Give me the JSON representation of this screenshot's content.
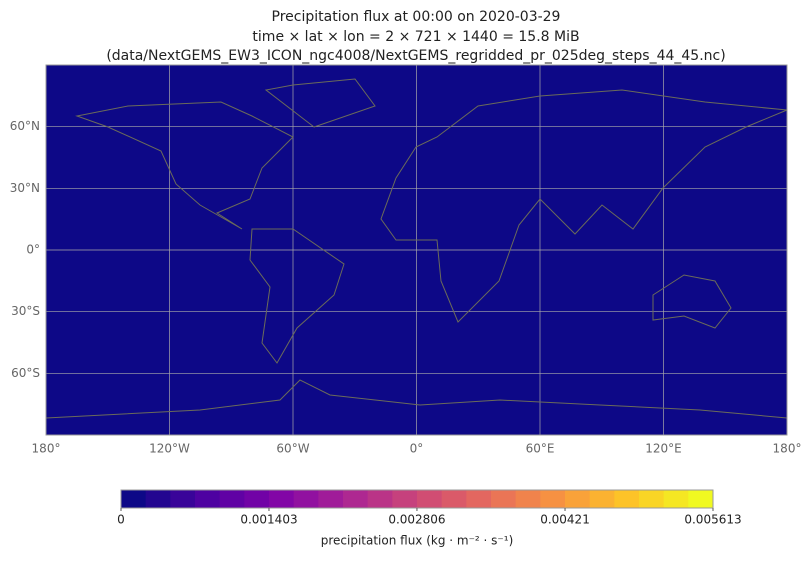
{
  "chart_data": {
    "type": "map",
    "title": [
      "Precipitation flux at 00:00 on 2020-03-29",
      "time × lat × lon = 2 × 721 × 1440 = 15.8 MiB",
      "(data/NextGEMS_EW3_ICON_ngc4008/NextGEMS_regridded_pr_025deg_steps_44_45.nc)"
    ],
    "xlim": [
      -180,
      180
    ],
    "ylim": [
      -90,
      90
    ],
    "xticks": [
      {
        "value": -180,
        "label": "180°"
      },
      {
        "value": -120,
        "label": "120°W"
      },
      {
        "value": -60,
        "label": "60°W"
      },
      {
        "value": 0,
        "label": "0°"
      },
      {
        "value": 60,
        "label": "60°E"
      },
      {
        "value": 120,
        "label": "120°E"
      },
      {
        "value": 180,
        "label": "180°"
      }
    ],
    "yticks": [
      {
        "value": 60,
        "label": "60°N"
      },
      {
        "value": 30,
        "label": "30°N"
      },
      {
        "value": 0,
        "label": "0°"
      },
      {
        "value": -30,
        "label": "30°S"
      },
      {
        "value": -60,
        "label": "60°S"
      }
    ],
    "grid": true,
    "background_color": "#0d0887",
    "colorbar": {
      "label": "precipitation flux (kg · m⁻² · s⁻¹)",
      "lim": [
        0,
        0.005613
      ],
      "ticks": [
        0,
        0.001403,
        0.002806,
        0.00421,
        0.005613
      ],
      "levels": 24,
      "colors": [
        "#0d0887",
        "#4c02a1",
        "#7e03a8",
        "#a92395",
        "#cc4778",
        "#e66c5c",
        "#f89540",
        "#fdc527",
        "#f0f921"
      ]
    }
  }
}
